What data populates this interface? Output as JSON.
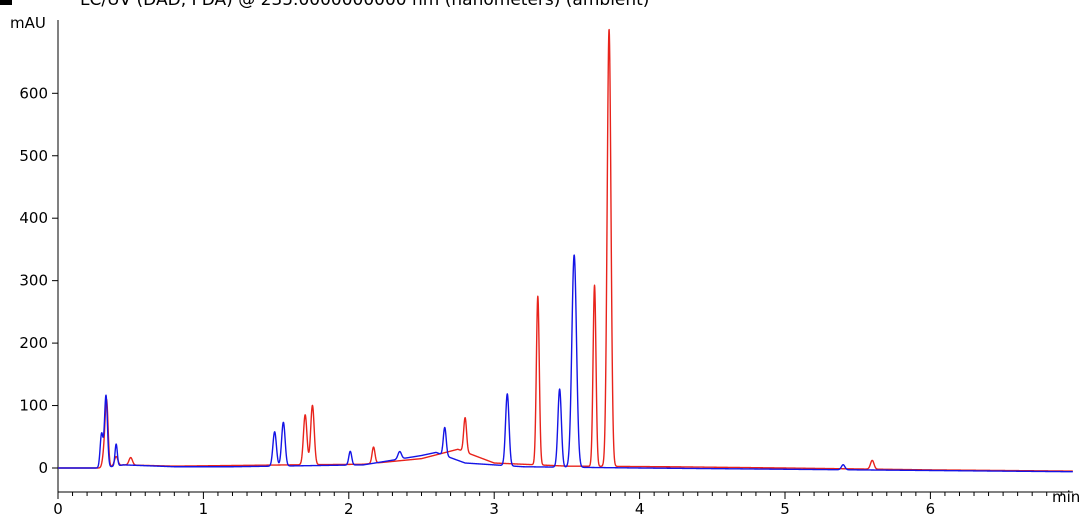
{
  "chart_data": {
    "type": "line",
    "title": "LC/UV (DAD, PDA) @ 235.0000000000 nm (nanometers) (ambient)",
    "ylabel": "mAU",
    "xlabel": "min",
    "xlim": [
      0,
      7.0
    ],
    "ylim": [
      -40,
      700
    ],
    "x_ticks": [
      0,
      1,
      2,
      3,
      4,
      5,
      6
    ],
    "y_ticks": [
      0,
      100,
      200,
      300,
      400,
      500,
      600
    ],
    "x_tick_labels": [
      "0",
      "1",
      "2",
      "3",
      "4",
      "5",
      "6"
    ],
    "y_tick_labels": [
      "0",
      "100",
      "200",
      "300",
      "400",
      "500",
      "600"
    ],
    "grid": false,
    "series": [
      {
        "color": "#e8231b",
        "baseline": [
          [
            0,
            0
          ],
          [
            0.3,
            0
          ],
          [
            0.45,
            5
          ],
          [
            0.8,
            3
          ],
          [
            1.6,
            5
          ],
          [
            2.1,
            6
          ],
          [
            2.5,
            15
          ],
          [
            2.75,
            30
          ],
          [
            3.0,
            8
          ],
          [
            3.5,
            3
          ],
          [
            4.2,
            2
          ],
          [
            5.0,
            0
          ],
          [
            6.0,
            -3
          ],
          [
            7.0,
            -5
          ]
        ],
        "peaks": [
          {
            "rt": 0.32,
            "height": 28,
            "width": 0.012
          },
          {
            "rt": 0.335,
            "height": 95,
            "width": 0.01
          },
          {
            "rt": 0.4,
            "height": 15,
            "width": 0.012
          },
          {
            "rt": 0.5,
            "height": 12,
            "width": 0.012
          },
          {
            "rt": 1.7,
            "height": 80,
            "width": 0.012
          },
          {
            "rt": 1.75,
            "height": 95,
            "width": 0.012
          },
          {
            "rt": 2.17,
            "height": 26,
            "width": 0.01
          },
          {
            "rt": 2.8,
            "height": 55,
            "width": 0.01
          },
          {
            "rt": 3.3,
            "height": 270,
            "width": 0.01
          },
          {
            "rt": 3.69,
            "height": 290,
            "width": 0.01
          },
          {
            "rt": 3.79,
            "height": 700,
            "width": 0.013
          },
          {
            "rt": 5.6,
            "height": 14,
            "width": 0.012
          }
        ]
      },
      {
        "color": "#1414e6",
        "baseline": [
          [
            0,
            0
          ],
          [
            0.3,
            0
          ],
          [
            0.45,
            5
          ],
          [
            0.8,
            2
          ],
          [
            1.2,
            2
          ],
          [
            2.1,
            5
          ],
          [
            2.5,
            20
          ],
          [
            2.6,
            25
          ],
          [
            2.8,
            8
          ],
          [
            3.2,
            2
          ],
          [
            4.0,
            0
          ],
          [
            5.0,
            -2
          ],
          [
            6.0,
            -4
          ],
          [
            7.0,
            -6
          ]
        ],
        "peaks": [
          {
            "rt": 0.3,
            "height": 55,
            "width": 0.01
          },
          {
            "rt": 0.33,
            "height": 115,
            "width": 0.01
          },
          {
            "rt": 0.4,
            "height": 35,
            "width": 0.008
          },
          {
            "rt": 1.49,
            "height": 55,
            "width": 0.012
          },
          {
            "rt": 1.55,
            "height": 70,
            "width": 0.012
          },
          {
            "rt": 2.01,
            "height": 22,
            "width": 0.01
          },
          {
            "rt": 2.35,
            "height": 12,
            "width": 0.012
          },
          {
            "rt": 2.66,
            "height": 45,
            "width": 0.01
          },
          {
            "rt": 3.09,
            "height": 115,
            "width": 0.012
          },
          {
            "rt": 3.45,
            "height": 125,
            "width": 0.012
          },
          {
            "rt": 3.55,
            "height": 340,
            "width": 0.016
          },
          {
            "rt": 5.4,
            "height": 8,
            "width": 0.012
          }
        ]
      }
    ]
  }
}
